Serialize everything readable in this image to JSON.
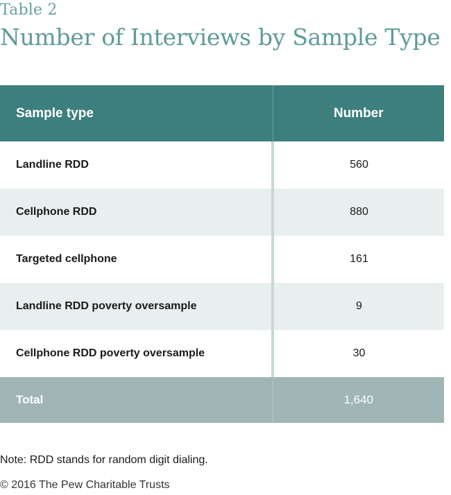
{
  "header": {
    "table_label": "Table 2",
    "title": "Number of Interviews by Sample Type"
  },
  "table": {
    "columns": [
      "Sample type",
      "Number"
    ],
    "rows": [
      {
        "type": "Landline RDD",
        "number": "560"
      },
      {
        "type": "Cellphone RDD",
        "number": "880"
      },
      {
        "type": "Targeted cellphone",
        "number": "161"
      },
      {
        "type": "Landline RDD poverty oversample",
        "number": "9"
      },
      {
        "type": "Cellphone RDD poverty oversample",
        "number": "30"
      }
    ],
    "total": {
      "type": "Total",
      "number": "1,640"
    }
  },
  "footer": {
    "note": "Note: RDD stands for random digit dialing.",
    "copyright": "© 2016 The Pew Charitable Trusts"
  },
  "colors": {
    "header_bg": "#3d7f7d",
    "title_text": "#5f9b9b",
    "row_alt_bg": "#e9eeee",
    "total_bg": "#a0b5b5"
  }
}
